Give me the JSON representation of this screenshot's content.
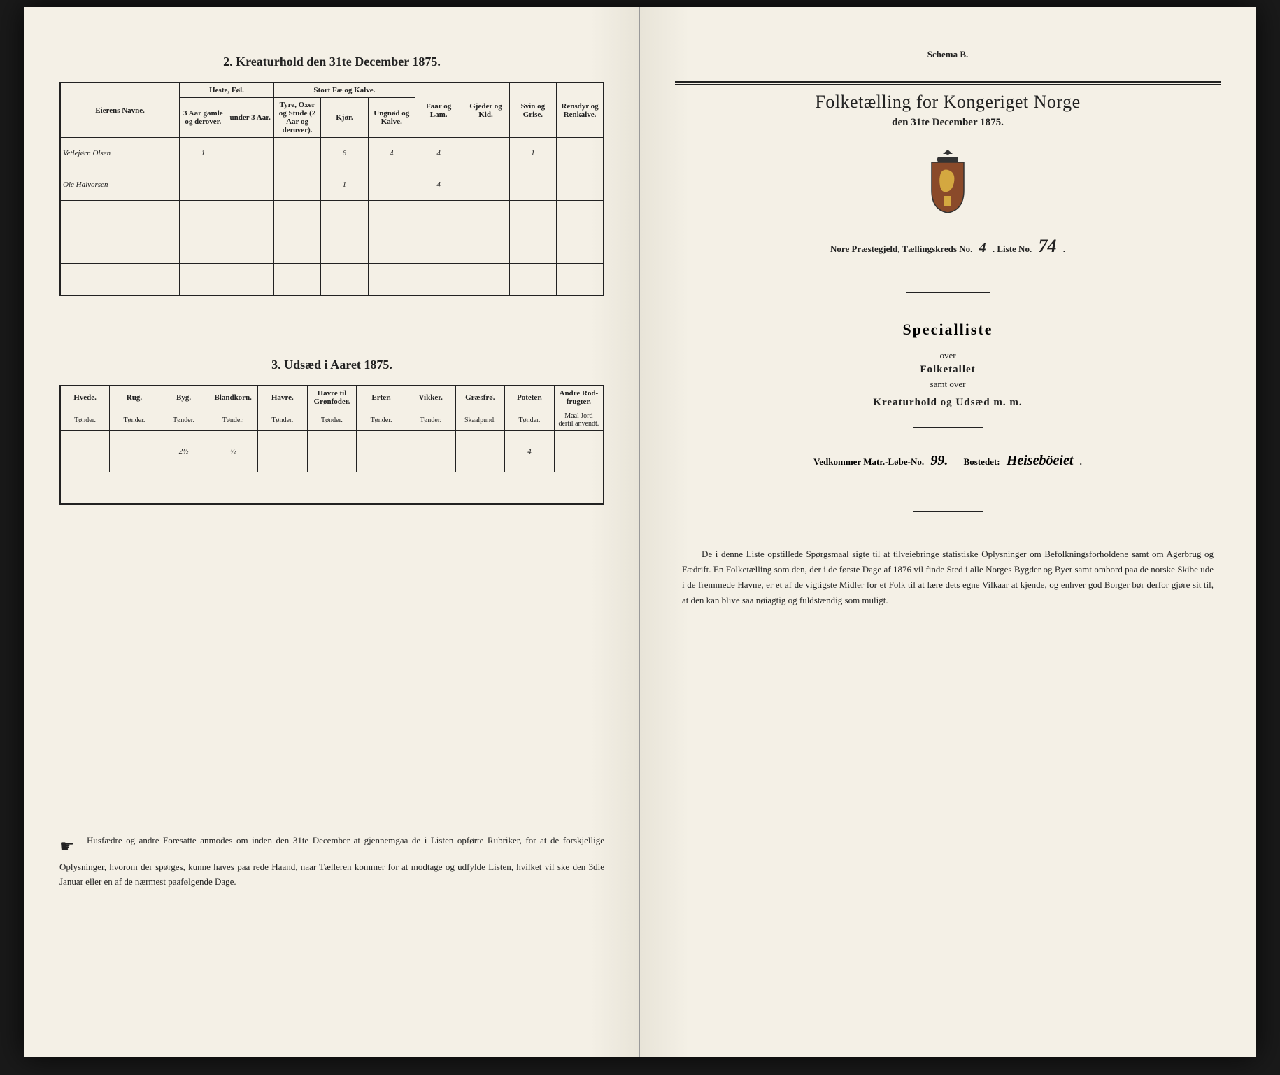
{
  "left": {
    "section2_title": "2. Kreaturhold den 31te December 1875.",
    "table2": {
      "col_groups": [
        {
          "label": "Eierens Navne.",
          "span": 1
        },
        {
          "label": "Heste, Føl.",
          "span": 2
        },
        {
          "label": "Stort Fæ og Kalve.",
          "span": 3
        },
        {
          "label": "Faar og Lam.",
          "span": 1
        },
        {
          "label": "Gjeder og Kid.",
          "span": 1
        },
        {
          "label": "Svin og Grise.",
          "span": 1
        },
        {
          "label": "Rensdyr og Renkalve.",
          "span": 1
        }
      ],
      "sub_cols": [
        "",
        "3 Aar gamle og derover.",
        "under 3 Aar.",
        "Tyre, Oxer og Stude (2 Aar og derover).",
        "Kjør.",
        "Ungnød og Kalve.",
        "",
        "",
        "",
        ""
      ],
      "rows": [
        {
          "name": "Vetlejørn Olsen",
          "cells": [
            "1",
            "",
            "",
            "6",
            "4",
            "4",
            "",
            "1",
            ""
          ]
        },
        {
          "name": "Ole Halvorsen",
          "cells": [
            "",
            "",
            "",
            "1",
            "",
            "4",
            "",
            "",
            ""
          ]
        },
        {
          "name": "",
          "cells": [
            "",
            "",
            "",
            "",
            "",
            "",
            "",
            "",
            ""
          ]
        },
        {
          "name": "",
          "cells": [
            "",
            "",
            "",
            "",
            "",
            "",
            "",
            "",
            ""
          ]
        },
        {
          "name": "",
          "cells": [
            "",
            "",
            "",
            "",
            "",
            "",
            "",
            "",
            ""
          ]
        }
      ]
    },
    "section3_title": "3. Udsæd i Aaret 1875.",
    "table3": {
      "cols": [
        {
          "h": "Hvede.",
          "sub": "Tønder."
        },
        {
          "h": "Rug.",
          "sub": "Tønder."
        },
        {
          "h": "Byg.",
          "sub": "Tønder."
        },
        {
          "h": "Blandkorn.",
          "sub": "Tønder."
        },
        {
          "h": "Havre.",
          "sub": "Tønder."
        },
        {
          "h": "Havre til Grønfoder.",
          "sub": "Tønder."
        },
        {
          "h": "Erter.",
          "sub": "Tønder."
        },
        {
          "h": "Vikker.",
          "sub": "Tønder."
        },
        {
          "h": "Græsfrø.",
          "sub": "Skaalpund."
        },
        {
          "h": "Poteter.",
          "sub": "Tønder."
        },
        {
          "h": "Andre Rod-frugter.",
          "sub": "Maal Jord dertil anvendt."
        }
      ],
      "row": [
        "",
        "",
        "2½",
        "½",
        "",
        "",
        "",
        "",
        "",
        "4",
        ""
      ]
    },
    "footnote": "Husfædre og andre Foresatte anmodes om inden den 31te December at gjennemgaa de i Listen opførte Rubriker, for at de forskjellige Oplysninger, hvorom der spørges, kunne haves paa rede Haand, naar Tælleren kommer for at modtage og udfylde Listen, hvilket vil ske den 3die Januar eller en af de nærmest paafølgende Dage."
  },
  "right": {
    "schema": "Schema B.",
    "title": "Folketælling for Kongeriget Norge",
    "subtitle": "den 31te December 1875.",
    "meta_prefix": "Nore Præstegjeld, Tællingskreds No.",
    "meta_kreds": "4",
    "meta_liste_label": ". Liste No.",
    "meta_liste": "74",
    "big": "Specialliste",
    "over": "over",
    "folketallet": "Folketallet",
    "samt": "samt over",
    "kreatur": "Kreaturhold og Udsæd m. m.",
    "field_label1": "Vedkommer Matr.-Løbe-No.",
    "field_val1": "99.",
    "field_label2": "Bostedet:",
    "field_val2": "Heiseböeiet",
    "para": "De i denne Liste opstillede Spørgsmaal sigte til at tilveiebringe statistiske Oplysninger om Befolkningsforholdene samt om Agerbrug og Fædrift. En Folketælling som den, der i de første Dage af 1876 vil finde Sted i alle Norges Bygder og Byer samt ombord paa de norske Skibe ude i de fremmede Havne, er et af de vigtigste Midler for et Folk til at lære dets egne Vilkaar at kjende, og enhver god Borger bør derfor gjøre sit til, at den kan blive saa nøiagtig og fuldstændig som muligt."
  }
}
